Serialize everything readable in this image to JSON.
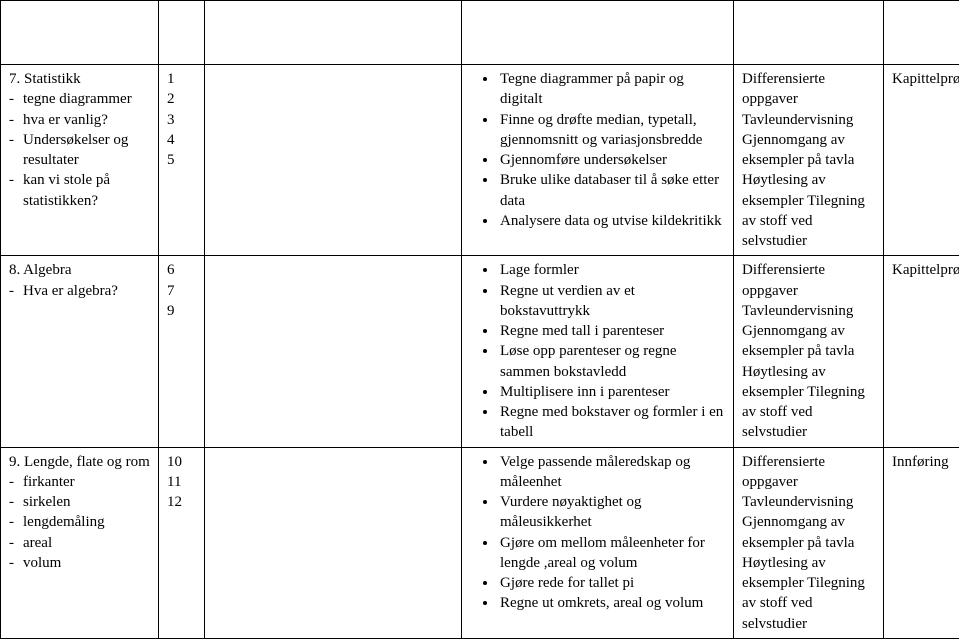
{
  "rows": [
    {
      "topic_title": "7.  Statistikk",
      "topic_items": [
        "tegne diagrammer",
        "hva er vanlig?",
        "Undersøkelser og resultater",
        "kan vi stole på statistikken?"
      ],
      "numbers": [
        "1",
        "2",
        "3",
        "4",
        "5"
      ],
      "goals": [
        "Tegne diagrammer på papir og digitalt",
        "Finne og drøfte median, typetall, gjennomsnitt og variasjonsbredde",
        "Gjennomføre undersøkelser",
        "Bruke ulike databaser til å søke etter data",
        "Analysere data og utvise kildekritikk"
      ],
      "methods": "Differensierte oppgaver Tavleundervisning Gjennomgang av eksempler på tavla Høytlesing av eksempler Tilegning av stoff ved selvstudier",
      "assessment": "Kapittelprøve"
    },
    {
      "topic_title": "8.  Algebra",
      "topic_items": [
        "Hva er algebra?"
      ],
      "numbers": [
        "6",
        "7",
        "9"
      ],
      "goals": [
        "Lage formler",
        "Regne ut verdien av et bokstavuttrykk",
        "Regne med tall i parenteser",
        "Løse opp parenteser og regne sammen bokstavledd",
        "Multiplisere inn i parenteser",
        "Regne med bokstaver og formler i en tabell"
      ],
      "methods": "Differensierte oppgaver Tavleundervisning Gjennomgang av eksempler på tavla Høytlesing av eksempler Tilegning av stoff ved selvstudier",
      "assessment": "Kapittelprøve"
    },
    {
      "topic_title": "9.  Lengde, flate og rom",
      "topic_items": [
        "firkanter",
        "sirkelen",
        "lengdemåling",
        "areal",
        "volum"
      ],
      "numbers": [
        "10",
        "11",
        "12"
      ],
      "goals": [
        "Velge passende måleredskap og måleenhet",
        "Vurdere nøyaktighet og måleusikkerhet",
        "Gjøre om mellom måleenheter for lengde ,areal og volum",
        "Gjøre rede for tallet  pi",
        "Regne ut omkrets, areal og volum"
      ],
      "methods": "Differensierte oppgaver Tavleundervisning Gjennomgang av eksempler på tavla Høytlesing av eksempler Tilegning av stoff ved selvstudier",
      "assessment": "Innføring"
    }
  ]
}
